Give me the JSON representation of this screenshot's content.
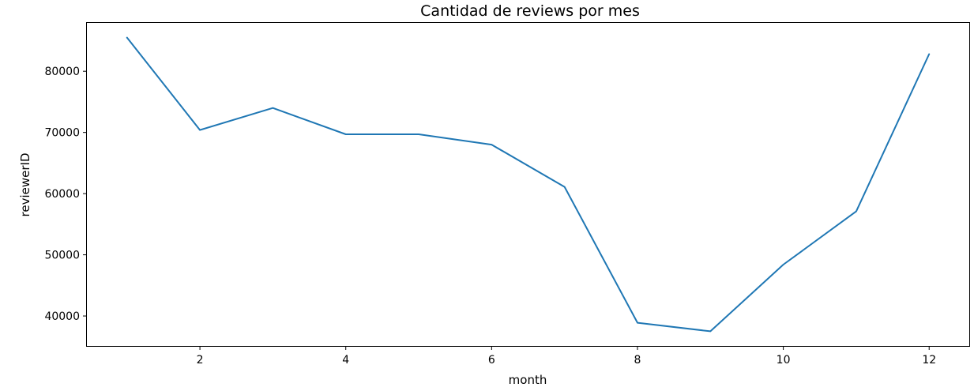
{
  "chart_data": {
    "type": "line",
    "title": "Cantidad de reviews por mes",
    "xlabel": "month",
    "ylabel": "reviewerID",
    "x": [
      1,
      2,
      3,
      4,
      5,
      6,
      7,
      8,
      9,
      10,
      11,
      12
    ],
    "series": [
      {
        "values": [
          85500,
          70400,
          74000,
          69700,
          69700,
          68000,
          61100,
          38900,
          37500,
          48400,
          57100,
          82800
        ],
        "color": "#1f77b4"
      }
    ],
    "xlim": [
      0.45,
      12.55
    ],
    "ylim": [
      35100,
      87900
    ],
    "xticks": [
      2,
      4,
      6,
      8,
      10,
      12
    ],
    "yticks": [
      40000,
      50000,
      60000,
      70000,
      80000
    ],
    "grid": false,
    "legend": "none"
  }
}
